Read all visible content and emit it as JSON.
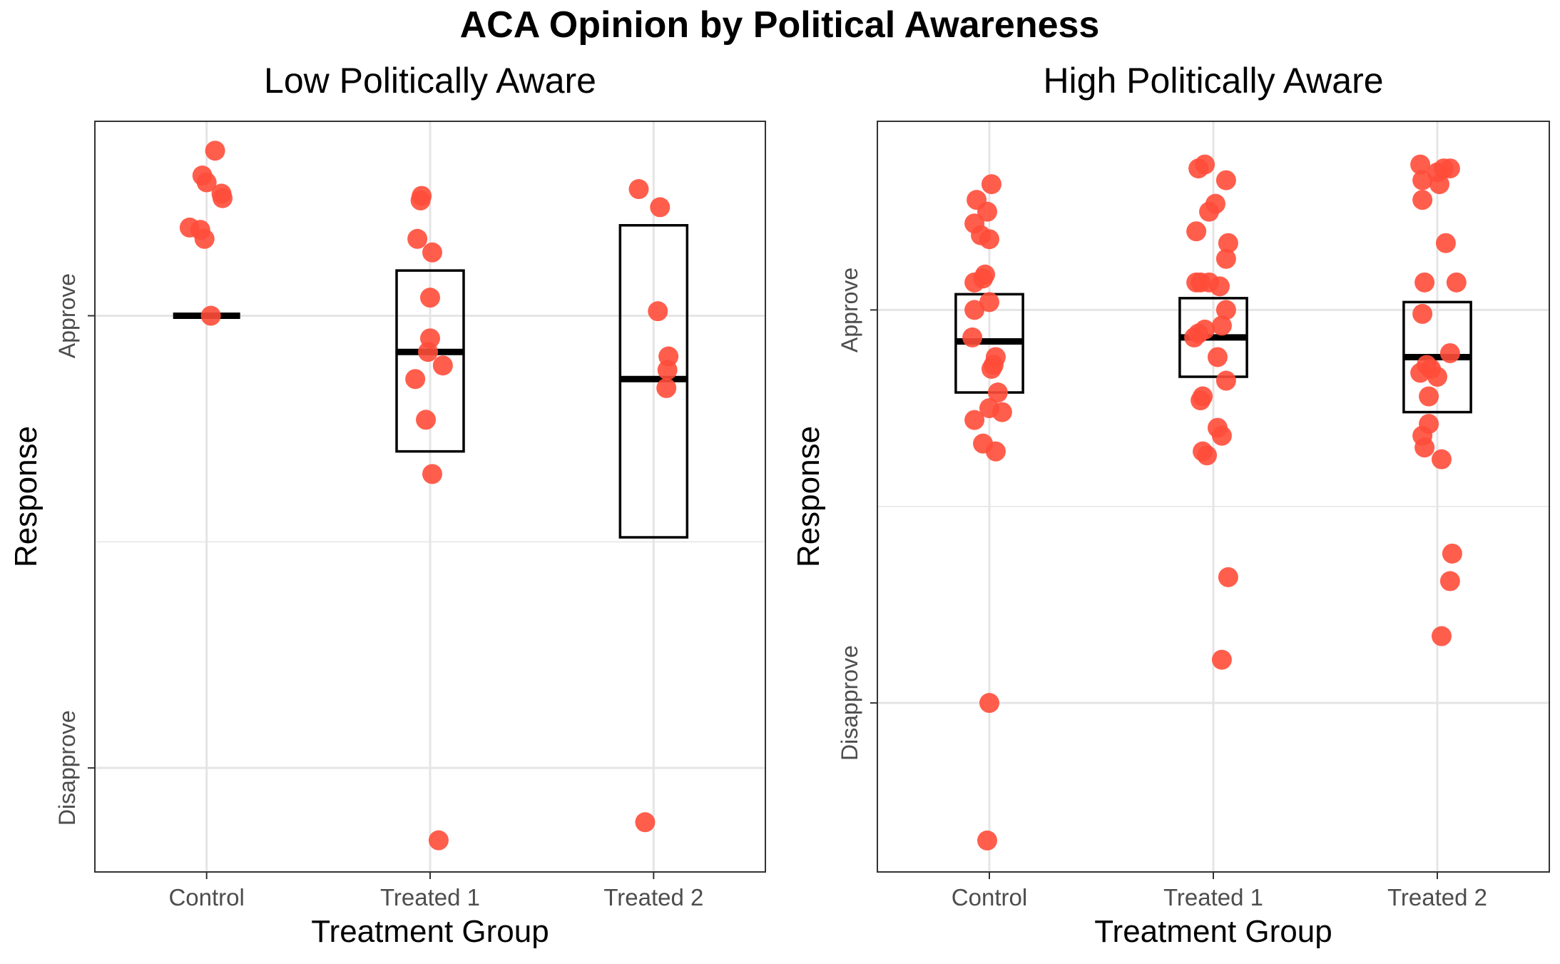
{
  "title": "ACA Opinion by Political Awareness",
  "colors": {
    "point": "#FF4D3A",
    "grid": "#E5E5E5",
    "frame": "#333333",
    "box": "#000000"
  },
  "chart_data": [
    {
      "type": "boxplot+jitter",
      "subtitle": "Low Politically Aware",
      "xlabel": "Treatment Group",
      "ylabel": "Response",
      "categories": [
        "Control",
        "Treated 1",
        "Treated 2"
      ],
      "ytick_labels": [
        "Approve",
        "Disapprove"
      ],
      "ytick_values": [
        1,
        0
      ],
      "ylim": [
        -0.23,
        1.43
      ],
      "grid": true,
      "boxes": [
        {
          "group": "Control",
          "q1": 1.0,
          "median": 1.0,
          "q3": 1.0
        },
        {
          "group": "Treated 1",
          "q1": 0.7,
          "median": 0.92,
          "q3": 1.1
        },
        {
          "group": "Treated 2",
          "q1": 0.51,
          "median": 0.86,
          "q3": 1.2
        }
      ],
      "points": [
        {
          "group": "Control",
          "jitter": 0.04,
          "value": 1.365
        },
        {
          "group": "Control",
          "jitter": -0.02,
          "value": 1.31
        },
        {
          "group": "Control",
          "jitter": 0.0,
          "value": 1.295
        },
        {
          "group": "Control",
          "jitter": 0.07,
          "value": 1.27
        },
        {
          "group": "Control",
          "jitter": 0.075,
          "value": 1.26
        },
        {
          "group": "Control",
          "jitter": -0.08,
          "value": 1.195
        },
        {
          "group": "Control",
          "jitter": -0.03,
          "value": 1.19
        },
        {
          "group": "Control",
          "jitter": -0.01,
          "value": 1.17
        },
        {
          "group": "Control",
          "jitter": 0.02,
          "value": 1.0
        },
        {
          "group": "Treated 1",
          "jitter": -0.04,
          "value": 1.265
        },
        {
          "group": "Treated 1",
          "jitter": -0.045,
          "value": 1.255
        },
        {
          "group": "Treated 1",
          "jitter": -0.06,
          "value": 1.17
        },
        {
          "group": "Treated 1",
          "jitter": 0.01,
          "value": 1.14
        },
        {
          "group": "Treated 1",
          "jitter": 0.0,
          "value": 1.04
        },
        {
          "group": "Treated 1",
          "jitter": 0.0,
          "value": 0.95
        },
        {
          "group": "Treated 1",
          "jitter": -0.01,
          "value": 0.92
        },
        {
          "group": "Treated 1",
          "jitter": 0.06,
          "value": 0.89
        },
        {
          "group": "Treated 1",
          "jitter": -0.07,
          "value": 0.86
        },
        {
          "group": "Treated 1",
          "jitter": -0.02,
          "value": 0.77
        },
        {
          "group": "Treated 1",
          "jitter": 0.01,
          "value": 0.65
        },
        {
          "group": "Treated 1",
          "jitter": 0.04,
          "value": -0.16
        },
        {
          "group": "Treated 2",
          "jitter": -0.07,
          "value": 1.28
        },
        {
          "group": "Treated 2",
          "jitter": 0.03,
          "value": 1.24
        },
        {
          "group": "Treated 2",
          "jitter": 0.02,
          "value": 1.01
        },
        {
          "group": "Treated 2",
          "jitter": 0.07,
          "value": 0.91
        },
        {
          "group": "Treated 2",
          "jitter": 0.065,
          "value": 0.88
        },
        {
          "group": "Treated 2",
          "jitter": 0.06,
          "value": 0.84
        },
        {
          "group": "Treated 2",
          "jitter": -0.04,
          "value": -0.12
        }
      ]
    },
    {
      "type": "boxplot+jitter",
      "subtitle": "High Politically Aware",
      "xlabel": "Treatment Group",
      "ylabel": "Response",
      "categories": [
        "Control",
        "Treated 1",
        "Treated 2"
      ],
      "ytick_labels": [
        "Approve",
        "Disapprove"
      ],
      "ytick_values": [
        1,
        0
      ],
      "ylim": [
        -0.43,
        1.48
      ],
      "grid": true,
      "boxes": [
        {
          "group": "Control",
          "q1": 0.79,
          "median": 0.92,
          "q3": 1.04
        },
        {
          "group": "Treated 1",
          "q1": 0.83,
          "median": 0.93,
          "q3": 1.03
        },
        {
          "group": "Treated 2",
          "q1": 0.74,
          "median": 0.88,
          "q3": 1.02
        }
      ],
      "points": [
        {
          "group": "Control",
          "jitter": 0.01,
          "value": 1.32
        },
        {
          "group": "Control",
          "jitter": -0.06,
          "value": 1.28
        },
        {
          "group": "Control",
          "jitter": -0.01,
          "value": 1.25
        },
        {
          "group": "Control",
          "jitter": -0.07,
          "value": 1.22
        },
        {
          "group": "Control",
          "jitter": -0.04,
          "value": 1.19
        },
        {
          "group": "Control",
          "jitter": 0.0,
          "value": 1.18
        },
        {
          "group": "Control",
          "jitter": -0.02,
          "value": 1.09
        },
        {
          "group": "Control",
          "jitter": -0.07,
          "value": 1.07
        },
        {
          "group": "Control",
          "jitter": -0.03,
          "value": 1.08
        },
        {
          "group": "Control",
          "jitter": 0.0,
          "value": 1.02
        },
        {
          "group": "Control",
          "jitter": -0.07,
          "value": 1.0
        },
        {
          "group": "Control",
          "jitter": -0.08,
          "value": 0.93
        },
        {
          "group": "Control",
          "jitter": 0.03,
          "value": 0.88
        },
        {
          "group": "Control",
          "jitter": 0.02,
          "value": 0.86
        },
        {
          "group": "Control",
          "jitter": 0.01,
          "value": 0.85
        },
        {
          "group": "Control",
          "jitter": 0.04,
          "value": 0.79
        },
        {
          "group": "Control",
          "jitter": 0.0,
          "value": 0.75
        },
        {
          "group": "Control",
          "jitter": 0.06,
          "value": 0.74
        },
        {
          "group": "Control",
          "jitter": -0.07,
          "value": 0.72
        },
        {
          "group": "Control",
          "jitter": -0.03,
          "value": 0.66
        },
        {
          "group": "Control",
          "jitter": 0.03,
          "value": 0.64
        },
        {
          "group": "Control",
          "jitter": 0.0,
          "value": 0.0
        },
        {
          "group": "Control",
          "jitter": -0.01,
          "value": -0.35
        },
        {
          "group": "Treated 1",
          "jitter": -0.04,
          "value": 1.37
        },
        {
          "group": "Treated 1",
          "jitter": -0.07,
          "value": 1.36
        },
        {
          "group": "Treated 1",
          "jitter": 0.06,
          "value": 1.33
        },
        {
          "group": "Treated 1",
          "jitter": 0.01,
          "value": 1.27
        },
        {
          "group": "Treated 1",
          "jitter": -0.02,
          "value": 1.25
        },
        {
          "group": "Treated 1",
          "jitter": -0.08,
          "value": 1.2
        },
        {
          "group": "Treated 1",
          "jitter": 0.07,
          "value": 1.17
        },
        {
          "group": "Treated 1",
          "jitter": 0.06,
          "value": 1.13
        },
        {
          "group": "Treated 1",
          "jitter": -0.08,
          "value": 1.07
        },
        {
          "group": "Treated 1",
          "jitter": -0.06,
          "value": 1.07
        },
        {
          "group": "Treated 1",
          "jitter": -0.02,
          "value": 1.07
        },
        {
          "group": "Treated 1",
          "jitter": 0.03,
          "value": 1.06
        },
        {
          "group": "Treated 1",
          "jitter": 0.06,
          "value": 1.0
        },
        {
          "group": "Treated 1",
          "jitter": 0.04,
          "value": 0.96
        },
        {
          "group": "Treated 1",
          "jitter": -0.04,
          "value": 0.95
        },
        {
          "group": "Treated 1",
          "jitter": -0.07,
          "value": 0.94
        },
        {
          "group": "Treated 1",
          "jitter": -0.09,
          "value": 0.93
        },
        {
          "group": "Treated 1",
          "jitter": 0.02,
          "value": 0.88
        },
        {
          "group": "Treated 1",
          "jitter": 0.06,
          "value": 0.82
        },
        {
          "group": "Treated 1",
          "jitter": -0.05,
          "value": 0.78
        },
        {
          "group": "Treated 1",
          "jitter": -0.06,
          "value": 0.77
        },
        {
          "group": "Treated 1",
          "jitter": 0.02,
          "value": 0.7
        },
        {
          "group": "Treated 1",
          "jitter": 0.04,
          "value": 0.68
        },
        {
          "group": "Treated 1",
          "jitter": -0.05,
          "value": 0.64
        },
        {
          "group": "Treated 1",
          "jitter": -0.03,
          "value": 0.63
        },
        {
          "group": "Treated 1",
          "jitter": 0.07,
          "value": 0.32
        },
        {
          "group": "Treated 1",
          "jitter": 0.04,
          "value": 0.11
        },
        {
          "group": "Treated 2",
          "jitter": -0.08,
          "value": 1.37
        },
        {
          "group": "Treated 2",
          "jitter": 0.0,
          "value": 1.35
        },
        {
          "group": "Treated 2",
          "jitter": 0.03,
          "value": 1.36
        },
        {
          "group": "Treated 2",
          "jitter": 0.06,
          "value": 1.36
        },
        {
          "group": "Treated 2",
          "jitter": -0.07,
          "value": 1.33
        },
        {
          "group": "Treated 2",
          "jitter": 0.01,
          "value": 1.32
        },
        {
          "group": "Treated 2",
          "jitter": -0.07,
          "value": 1.28
        },
        {
          "group": "Treated 2",
          "jitter": 0.04,
          "value": 1.17
        },
        {
          "group": "Treated 2",
          "jitter": -0.06,
          "value": 1.07
        },
        {
          "group": "Treated 2",
          "jitter": 0.09,
          "value": 1.07
        },
        {
          "group": "Treated 2",
          "jitter": -0.07,
          "value": 0.99
        },
        {
          "group": "Treated 2",
          "jitter": 0.06,
          "value": 0.89
        },
        {
          "group": "Treated 2",
          "jitter": -0.05,
          "value": 0.86
        },
        {
          "group": "Treated 2",
          "jitter": -0.03,
          "value": 0.85
        },
        {
          "group": "Treated 2",
          "jitter": -0.08,
          "value": 0.84
        },
        {
          "group": "Treated 2",
          "jitter": 0.0,
          "value": 0.83
        },
        {
          "group": "Treated 2",
          "jitter": -0.04,
          "value": 0.78
        },
        {
          "group": "Treated 2",
          "jitter": -0.04,
          "value": 0.71
        },
        {
          "group": "Treated 2",
          "jitter": -0.07,
          "value": 0.68
        },
        {
          "group": "Treated 2",
          "jitter": -0.06,
          "value": 0.65
        },
        {
          "group": "Treated 2",
          "jitter": 0.02,
          "value": 0.62
        },
        {
          "group": "Treated 2",
          "jitter": 0.07,
          "value": 0.38
        },
        {
          "group": "Treated 2",
          "jitter": 0.06,
          "value": 0.31
        },
        {
          "group": "Treated 2",
          "jitter": 0.02,
          "value": 0.17
        }
      ]
    }
  ]
}
